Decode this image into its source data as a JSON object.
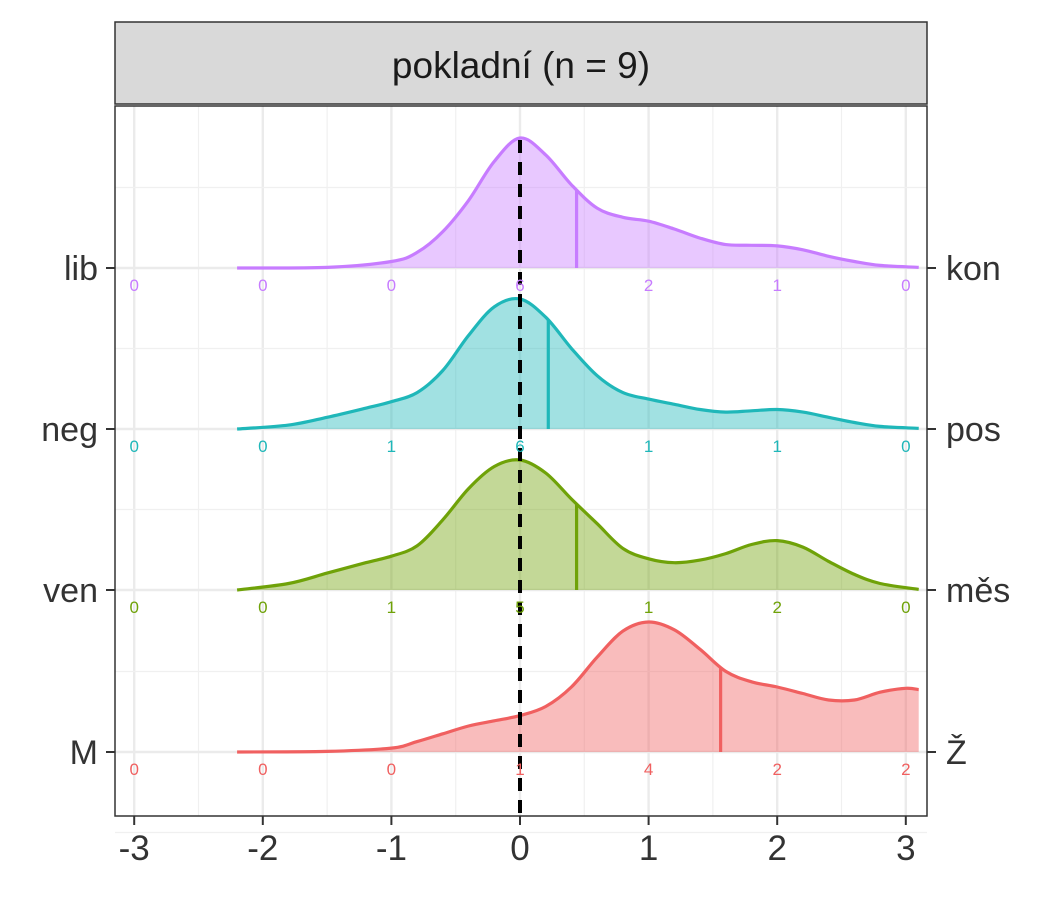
{
  "chart_data": {
    "type": "ridgeline",
    "title": "pokladní (n = 9)",
    "xlabel": "",
    "ylabel": "",
    "xlim": [
      -3.1,
      3.1
    ],
    "x_ticks": [
      "-3",
      "-2",
      "-1",
      "0",
      "1",
      "2",
      "3"
    ],
    "x_tick_values": [
      -3,
      -2,
      -1,
      0,
      1,
      2,
      3
    ],
    "reference_line": 0,
    "grid": true,
    "count_positions": [
      -3,
      -2,
      -1,
      0,
      1,
      2,
      3
    ],
    "series": [
      {
        "left_label": "lib",
        "right_label": "kon",
        "color": "#C77CFF",
        "counts": [
          "0",
          "0",
          "0",
          "6",
          "2",
          "1",
          "0"
        ],
        "mean": 0.44,
        "density_x": [
          -2.2,
          -1.5,
          -1.0,
          -0.8,
          -0.6,
          -0.4,
          -0.2,
          0.0,
          0.2,
          0.4,
          0.6,
          0.8,
          1.0,
          1.2,
          1.4,
          1.6,
          1.8,
          2.0,
          2.2,
          2.4,
          2.6,
          2.8,
          3.1
        ],
        "density_y": [
          0.0,
          0.005,
          0.05,
          0.12,
          0.28,
          0.52,
          0.82,
          1.0,
          0.87,
          0.64,
          0.46,
          0.39,
          0.36,
          0.3,
          0.23,
          0.18,
          0.175,
          0.17,
          0.14,
          0.09,
          0.05,
          0.02,
          0.005
        ]
      },
      {
        "left_label": "neg",
        "right_label": "pos",
        "color": "#1FB7B9",
        "counts": [
          "0",
          "0",
          "1",
          "6",
          "1",
          "1",
          "0"
        ],
        "mean": 0.22,
        "density_x": [
          -2.2,
          -1.8,
          -1.5,
          -1.2,
          -1.0,
          -0.8,
          -0.6,
          -0.4,
          -0.2,
          0.0,
          0.2,
          0.4,
          0.6,
          0.8,
          1.0,
          1.2,
          1.4,
          1.6,
          1.8,
          2.0,
          2.2,
          2.4,
          2.6,
          2.8,
          3.1
        ],
        "density_y": [
          0.0,
          0.03,
          0.09,
          0.16,
          0.21,
          0.28,
          0.45,
          0.72,
          0.94,
          1.0,
          0.86,
          0.62,
          0.41,
          0.28,
          0.23,
          0.19,
          0.15,
          0.13,
          0.14,
          0.15,
          0.13,
          0.09,
          0.05,
          0.02,
          0.005
        ]
      },
      {
        "left_label": "ven",
        "right_label": "měs",
        "color": "#6FA208",
        "counts": [
          "0",
          "0",
          "1",
          "5",
          "1",
          "2",
          "0"
        ],
        "mean": 0.44,
        "density_x": [
          -2.2,
          -1.8,
          -1.5,
          -1.2,
          -1.0,
          -0.8,
          -0.6,
          -0.4,
          -0.2,
          0.0,
          0.2,
          0.4,
          0.6,
          0.8,
          1.0,
          1.2,
          1.4,
          1.6,
          1.8,
          2.0,
          2.2,
          2.4,
          2.6,
          2.8,
          3.1
        ],
        "density_y": [
          0.0,
          0.05,
          0.13,
          0.21,
          0.26,
          0.34,
          0.54,
          0.78,
          0.95,
          1.0,
          0.9,
          0.7,
          0.51,
          0.32,
          0.24,
          0.21,
          0.23,
          0.28,
          0.35,
          0.38,
          0.33,
          0.22,
          0.12,
          0.05,
          0.005
        ]
      },
      {
        "left_label": "M",
        "right_label": "Ž",
        "color": "#F06060",
        "counts": [
          "0",
          "0",
          "0",
          "1",
          "4",
          "2",
          "2"
        ],
        "mean": 1.56,
        "density_x": [
          -2.2,
          -1.5,
          -1.0,
          -0.8,
          -0.6,
          -0.4,
          -0.2,
          0.0,
          0.2,
          0.4,
          0.6,
          0.8,
          1.0,
          1.2,
          1.4,
          1.6,
          1.8,
          2.0,
          2.2,
          2.4,
          2.6,
          2.8,
          3.0,
          3.1
        ],
        "density_y": [
          0.0,
          0.005,
          0.03,
          0.08,
          0.14,
          0.2,
          0.24,
          0.28,
          0.35,
          0.5,
          0.73,
          0.93,
          1.0,
          0.94,
          0.79,
          0.62,
          0.54,
          0.5,
          0.45,
          0.4,
          0.4,
          0.46,
          0.49,
          0.48
        ]
      }
    ]
  }
}
